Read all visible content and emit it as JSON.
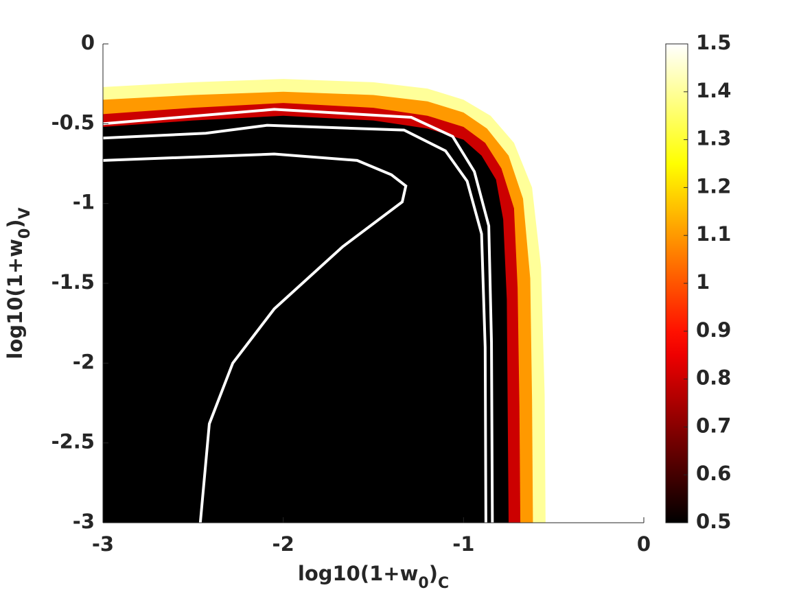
{
  "chart_data": {
    "type": "contour",
    "xlabel_parts": [
      "log10(1+w",
      "0",
      ")",
      "C"
    ],
    "ylabel_parts": [
      "log10(1+w",
      "0",
      ")",
      "V"
    ],
    "xlim": [
      -3,
      0
    ],
    "ylim": [
      -3,
      0
    ],
    "xticks": [
      -3,
      -2,
      -1,
      0
    ],
    "yticks": [
      -3,
      -2.5,
      -2,
      -1.5,
      -1,
      -0.5,
      0
    ],
    "colormap": "hot",
    "clim": [
      0.5,
      1.5
    ],
    "cticks": [
      0.5,
      0.6,
      0.7,
      0.8,
      0.9,
      1,
      1.1,
      1.2,
      1.3,
      1.4,
      1.5
    ],
    "filled_levels": [
      {
        "level": 1.5,
        "x": [
          -3,
          -2.5,
          -2,
          -1.5,
          -1.2,
          -1,
          -0.85,
          -0.72,
          -0.62,
          -0.57,
          -0.55,
          -0.545
        ],
        "y": [
          -0.27,
          -0.24,
          -0.22,
          -0.24,
          -0.28,
          -0.35,
          -0.45,
          -0.62,
          -0.9,
          -1.4,
          -2.2,
          -3
        ]
      },
      {
        "level": 1.2,
        "x": [
          -3,
          -2.5,
          -2,
          -1.5,
          -1.2,
          -1,
          -0.87,
          -0.75,
          -0.67,
          -0.63,
          -0.62,
          -0.615
        ],
        "y": [
          -0.35,
          -0.32,
          -0.3,
          -0.32,
          -0.36,
          -0.43,
          -0.53,
          -0.7,
          -0.97,
          -1.47,
          -2.23,
          -3
        ]
      },
      {
        "level": 0.9,
        "x": [
          -3,
          -2.5,
          -2,
          -1.5,
          -1.2,
          -1,
          -0.88,
          -0.79,
          -0.72,
          -0.7,
          -0.69,
          -0.685
        ],
        "y": [
          -0.44,
          -0.4,
          -0.37,
          -0.4,
          -0.45,
          -0.52,
          -0.62,
          -0.78,
          -1.03,
          -1.53,
          -2.27,
          -3
        ]
      },
      {
        "level": 0.6,
        "x": [
          -3,
          -2.5,
          -2,
          -1.5,
          -1.2,
          -1,
          -0.9,
          -0.82,
          -0.78,
          -0.76,
          -0.755,
          -0.75
        ],
        "y": [
          -0.52,
          -0.48,
          -0.45,
          -0.48,
          -0.53,
          -0.6,
          -0.7,
          -0.85,
          -1.1,
          -1.6,
          -2.3,
          -3
        ]
      }
    ],
    "contour_lines": [
      {
        "color": "#ffffff",
        "x": [
          -3,
          -2.05,
          -1.29,
          -1.06,
          -0.94,
          -0.86,
          -0.845,
          -0.84
        ],
        "y": [
          -0.5,
          -0.41,
          -0.46,
          -0.58,
          -0.8,
          -1.14,
          -1.87,
          -3
        ]
      },
      {
        "color": "#ffffff",
        "x": [
          -3,
          -2.43,
          -2.09,
          -1.33,
          -1.1,
          -0.98,
          -0.9,
          -0.88,
          -0.876
        ],
        "y": [
          -0.59,
          -0.56,
          -0.51,
          -0.54,
          -0.67,
          -0.86,
          -1.19,
          -1.9,
          -3
        ]
      },
      {
        "color": "#ffffff",
        "x": [
          -3,
          -2.05,
          -1.59,
          -1.4,
          -1.32,
          -1.34,
          -1.67,
          -2.05,
          -2.28,
          -2.41,
          -2.46
        ],
        "y": [
          -0.73,
          -0.69,
          -0.73,
          -0.82,
          -0.89,
          -0.99,
          -1.27,
          -1.66,
          -2,
          -2.38,
          -3
        ]
      }
    ]
  }
}
